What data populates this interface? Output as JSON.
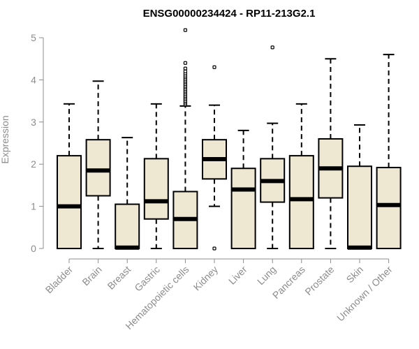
{
  "chart_data": {
    "type": "boxplot",
    "title": "ENSG00000234424 - RP11-213G2.1",
    "xlabel": "",
    "ylabel": "Expression",
    "ylim": [
      0,
      5
    ],
    "yticks": [
      "0",
      "1",
      "2",
      "3",
      "4",
      "5"
    ],
    "box_fill": "#EEE8D2",
    "box_stroke": "#000000",
    "axis_color": "#8C8C8C",
    "categories": [
      "Bladder",
      "Brain",
      "Breast",
      "Gastric",
      "Hematopoietic cells",
      "Kidney",
      "Liver",
      "Lung",
      "Pancreas",
      "Prostate",
      "Skin",
      "Unknown / Other"
    ],
    "boxes": [
      {
        "min": 0,
        "q1": 0,
        "median": 1.0,
        "q3": 2.2,
        "max": 3.43,
        "outliers": []
      },
      {
        "min": 0,
        "q1": 1.25,
        "median": 1.85,
        "q3": 2.58,
        "max": 3.97,
        "outliers": []
      },
      {
        "min": 0,
        "q1": 0,
        "median": 0.02,
        "q3": 1.05,
        "max": 2.63,
        "outliers": []
      },
      {
        "min": 0,
        "q1": 0.7,
        "median": 1.12,
        "q3": 2.13,
        "max": 3.43,
        "outliers": []
      },
      {
        "min": 0,
        "q1": 0,
        "median": 0.7,
        "q3": 1.35,
        "max": 3.38,
        "outliers": [
          3.42,
          3.46,
          3.5,
          3.54,
          3.58,
          3.62,
          3.66,
          3.7,
          3.74,
          3.78,
          3.82,
          3.86,
          3.9,
          3.94,
          3.98,
          4.02,
          4.06,
          4.1,
          4.15,
          4.2,
          4.27,
          4.4,
          5.18
        ]
      },
      {
        "min": 1.0,
        "q1": 1.65,
        "median": 2.12,
        "q3": 2.58,
        "max": 3.4,
        "outliers": [
          0.0,
          4.3
        ]
      },
      {
        "min": 0,
        "q1": 0,
        "median": 1.4,
        "q3": 1.9,
        "max": 2.8,
        "outliers": []
      },
      {
        "min": 0,
        "q1": 1.1,
        "median": 1.6,
        "q3": 2.13,
        "max": 2.97,
        "outliers": [
          4.77
        ]
      },
      {
        "min": 0,
        "q1": 0,
        "median": 1.17,
        "q3": 2.2,
        "max": 3.43,
        "outliers": []
      },
      {
        "min": 0,
        "q1": 1.2,
        "median": 1.9,
        "q3": 2.6,
        "max": 4.5,
        "outliers": []
      },
      {
        "min": 0,
        "q1": 0,
        "median": 0.02,
        "q3": 1.95,
        "max": 2.93,
        "outliers": []
      },
      {
        "min": 0,
        "q1": 0,
        "median": 1.03,
        "q3": 1.92,
        "max": 4.6,
        "outliers": []
      }
    ]
  }
}
